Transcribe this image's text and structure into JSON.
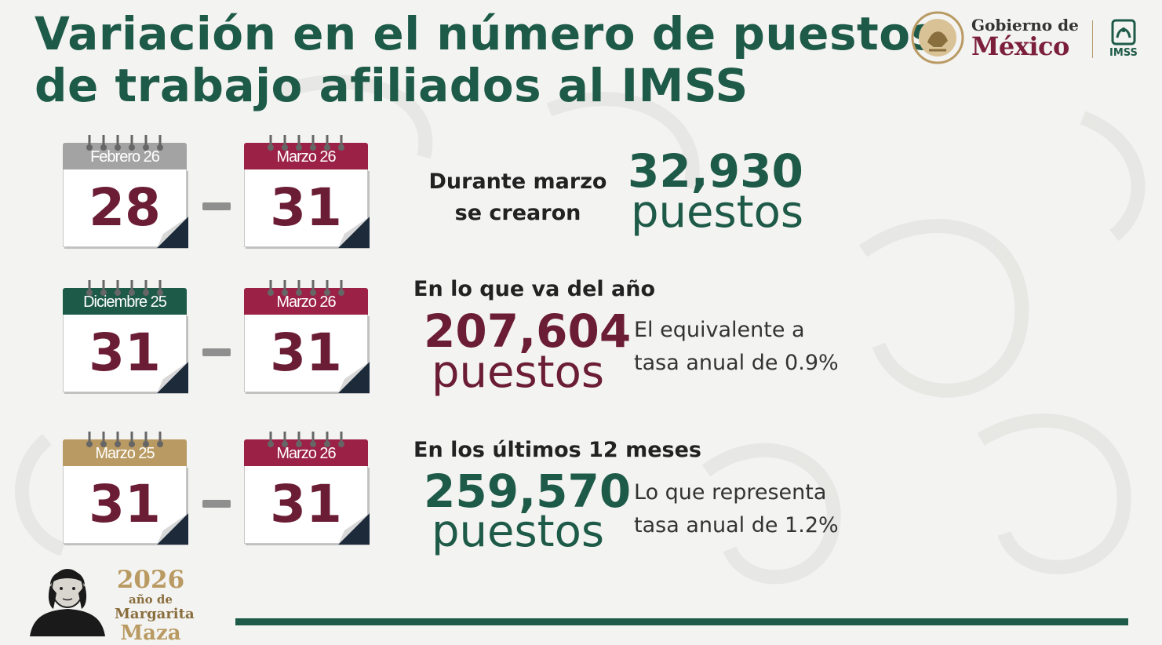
{
  "title": {
    "line1": "Variación en el número de puestos",
    "line2": "de trabajo afiliados al IMSS"
  },
  "logos": {
    "gobierno_small": "Gobierno de",
    "gobierno_big": "México",
    "imss": "IMSS",
    "seal_icon": "coat-of-arms-icon",
    "imss_icon": "imss-eagle-icon"
  },
  "colors": {
    "green": "#1e5a48",
    "maroon": "#6b1d35",
    "maroon_header": "#9b2246",
    "gray_header": "#a3a3a3",
    "gold_header": "#b99a62"
  },
  "rows": [
    {
      "from": {
        "month": "Febrero 26",
        "day": "28"
      },
      "to": {
        "month": "Marzo 26",
        "day": "31"
      },
      "label_line1": "Durante marzo",
      "label_line2": "se crearon",
      "value": "32,930",
      "unit": "puestos"
    },
    {
      "from": {
        "month": "Diciembre 25",
        "day": "31"
      },
      "to": {
        "month": "Marzo 26",
        "day": "31"
      },
      "label": "En lo que va del año",
      "value": "207,604",
      "unit": "puestos",
      "note_line1": "El equivalente a",
      "note_line2": "tasa anual de 0.9%"
    },
    {
      "from": {
        "month": "Marzo 25",
        "day": "31"
      },
      "to": {
        "month": "Marzo 26",
        "day": "31"
      },
      "label": "En los últimos 12 meses",
      "value": "259,570",
      "unit": "puestos",
      "note_line1": "Lo que representa",
      "note_line2": "tasa anual de 1.2%"
    }
  ],
  "footer": {
    "year": "2026",
    "year_sub": "año de",
    "name_first": "Margarita",
    "name_last": "Maza"
  }
}
